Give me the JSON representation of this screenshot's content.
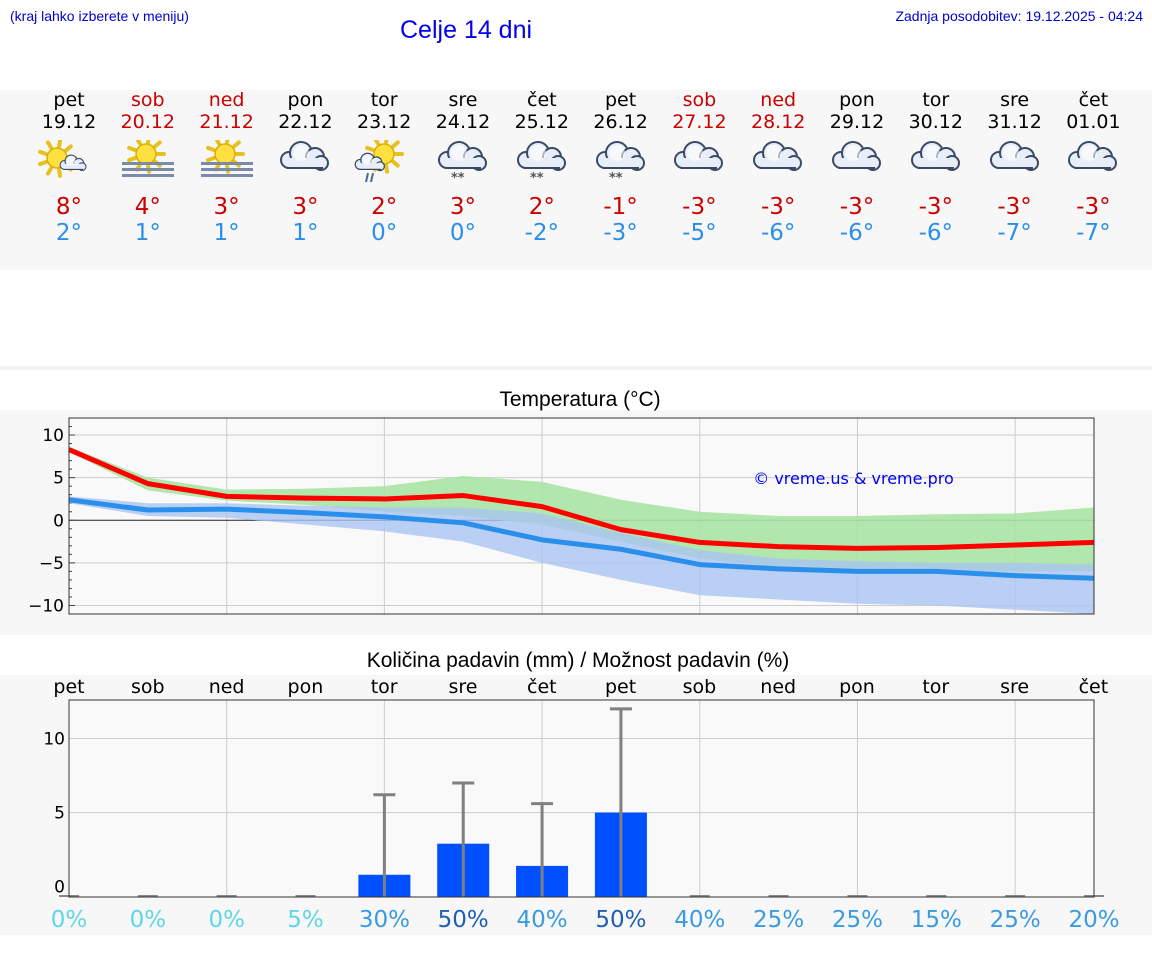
{
  "header": {
    "hint": "(kraj lahko izberete v meniju)",
    "title": "Celje 14 dni",
    "updated": "Zadnja posodobitev: 19.12.2025 - 04:24"
  },
  "colors": {
    "max": "#cc0000",
    "min": "#2a8fea",
    "weekend": "#cc0000",
    "bar": "#0050ff",
    "band_max": "#a8e4a4",
    "band_min": "#aac4f2"
  },
  "days": [
    {
      "name": "pet",
      "date": "19.12",
      "weekend": false,
      "icon": "sun-cloud-icon",
      "max": "8°",
      "min": "2°"
    },
    {
      "name": "sob",
      "date": "20.12",
      "weekend": true,
      "icon": "sun-fog-icon",
      "max": "4°",
      "min": "1°"
    },
    {
      "name": "ned",
      "date": "21.12",
      "weekend": true,
      "icon": "sun-fog-icon",
      "max": "3°",
      "min": "1°"
    },
    {
      "name": "pon",
      "date": "22.12",
      "weekend": false,
      "icon": "cloudy-icon",
      "max": "3°",
      "min": "1°"
    },
    {
      "name": "tor",
      "date": "23.12",
      "weekend": false,
      "icon": "sun-rain-icon",
      "max": "2°",
      "min": "0°"
    },
    {
      "name": "sre",
      "date": "24.12",
      "weekend": false,
      "icon": "cloud-snow-icon",
      "max": "3°",
      "min": "0°"
    },
    {
      "name": "čet",
      "date": "25.12",
      "weekend": false,
      "icon": "cloud-snow-icon",
      "max": "2°",
      "min": "-2°"
    },
    {
      "name": "pet",
      "date": "26.12",
      "weekend": false,
      "icon": "cloud-snow-icon",
      "max": "-1°",
      "min": "-3°"
    },
    {
      "name": "sob",
      "date": "27.12",
      "weekend": true,
      "icon": "cloudy-icon",
      "max": "-3°",
      "min": "-5°"
    },
    {
      "name": "ned",
      "date": "28.12",
      "weekend": true,
      "icon": "cloudy-icon",
      "max": "-3°",
      "min": "-6°"
    },
    {
      "name": "pon",
      "date": "29.12",
      "weekend": false,
      "icon": "cloudy-icon",
      "max": "-3°",
      "min": "-6°"
    },
    {
      "name": "tor",
      "date": "30.12",
      "weekend": false,
      "icon": "cloudy-icon",
      "max": "-3°",
      "min": "-6°"
    },
    {
      "name": "sre",
      "date": "31.12",
      "weekend": false,
      "icon": "cloudy-icon",
      "max": "-3°",
      "min": "-7°"
    },
    {
      "name": "čet",
      "date": "01.01",
      "weekend": false,
      "icon": "cloudy-icon",
      "max": "-3°",
      "min": "-7°"
    }
  ],
  "chart_data": [
    {
      "type": "line",
      "title": "Temperatura (°C)",
      "watermark": "© vreme.us & vreme.pro",
      "x": [
        0,
        1,
        2,
        3,
        4,
        5,
        6,
        7,
        8,
        9,
        10,
        11,
        12,
        13
      ],
      "ylim": [
        -11,
        12
      ],
      "yticks": [
        10,
        5,
        0,
        -5,
        -10
      ],
      "ytick_labels": [
        "10",
        "5",
        "0",
        "−5",
        "−10"
      ],
      "series": [
        {
          "name": "max",
          "color": "#ff0000",
          "values": [
            8.3,
            4.3,
            2.8,
            2.6,
            2.5,
            2.9,
            1.6,
            -1.1,
            -2.6,
            -3.1,
            -3.3,
            -3.2,
            -2.9,
            -2.6
          ],
          "band_low": [
            8.0,
            3.5,
            2.3,
            1.8,
            1.0,
            0.5,
            -0.5,
            -2.5,
            -4.5,
            -5.5,
            -6.0,
            -6.0,
            -6.0,
            -6.0
          ],
          "band_high": [
            8.6,
            5.0,
            3.6,
            3.7,
            4.0,
            5.2,
            4.5,
            2.4,
            1.0,
            0.5,
            0.5,
            0.7,
            0.8,
            1.5
          ]
        },
        {
          "name": "min",
          "color": "#2a8fea",
          "values": [
            2.4,
            1.2,
            1.3,
            0.9,
            0.4,
            -0.3,
            -2.3,
            -3.4,
            -5.2,
            -5.7,
            -6.0,
            -6.0,
            -6.5,
            -6.8
          ],
          "band_low": [
            2.0,
            0.5,
            0.3,
            -0.5,
            -1.3,
            -2.5,
            -5.0,
            -7.0,
            -8.8,
            -9.3,
            -9.8,
            -10.0,
            -10.5,
            -11.0
          ],
          "band_high": [
            2.8,
            2.0,
            2.0,
            1.7,
            1.5,
            1.5,
            0.8,
            -1.5,
            -3.5,
            -4.5,
            -4.8,
            -5.0,
            -5.0,
            -5.2
          ]
        }
      ]
    },
    {
      "type": "bar",
      "title": "Količina padavin (mm) / Možnost padavin (%)",
      "categories": [
        "pet",
        "sob",
        "ned",
        "pon",
        "tor",
        "sre",
        "čet",
        "pet",
        "sob",
        "ned",
        "pon",
        "tor",
        "sre",
        "čet"
      ],
      "values": [
        0,
        0,
        0,
        0,
        0.8,
        2.9,
        1.4,
        5.0,
        0,
        0,
        0,
        0,
        0,
        0
      ],
      "error_high": [
        0,
        0,
        0,
        0,
        6.2,
        7.0,
        5.6,
        12.0,
        0,
        0,
        0,
        0,
        0,
        0
      ],
      "ylim": [
        -0.7,
        12.6
      ],
      "yticks": [
        10,
        5,
        0
      ],
      "ytick_labels": [
        "10",
        "5",
        "0"
      ],
      "probability": [
        "0%",
        "0%",
        "0%",
        "5%",
        "30%",
        "50%",
        "40%",
        "50%",
        "40%",
        "25%",
        "25%",
        "15%",
        "25%",
        "20%"
      ],
      "probability_colors": [
        "#5fd6e8",
        "#5fd6e8",
        "#5fd6e8",
        "#5fd6e8",
        "#3a9be0",
        "#1f5fb0",
        "#3a9be0",
        "#1f5fb0",
        "#3a9be0",
        "#3a9be0",
        "#3a9be0",
        "#3a9be0",
        "#3a9be0",
        "#3a9be0"
      ]
    }
  ]
}
